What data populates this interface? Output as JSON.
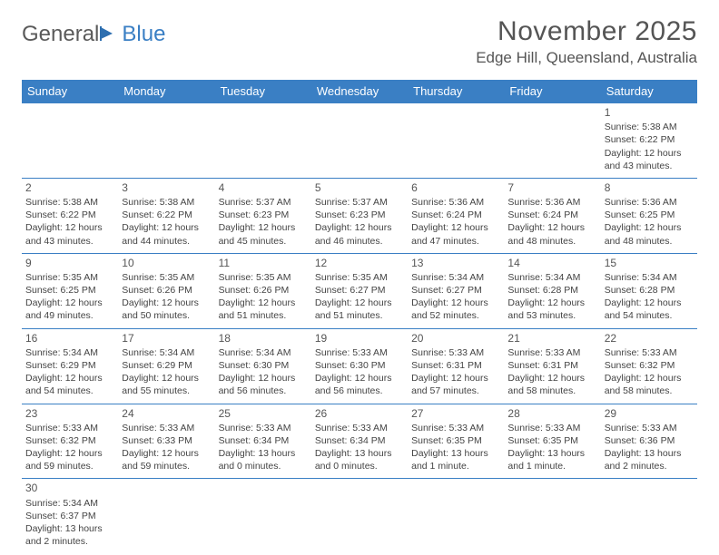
{
  "logo": {
    "text1": "General",
    "text2": "Blue"
  },
  "title": "November 2025",
  "location": "Edge Hill, Queensland, Australia",
  "colors": {
    "header_bg": "#3a7fc4",
    "header_text": "#ffffff",
    "border": "#3a7fc4",
    "text": "#444444",
    "title_text": "#555555"
  },
  "day_headers": [
    "Sunday",
    "Monday",
    "Tuesday",
    "Wednesday",
    "Thursday",
    "Friday",
    "Saturday"
  ],
  "weeks": [
    [
      null,
      null,
      null,
      null,
      null,
      null,
      {
        "n": "1",
        "sr": "5:38 AM",
        "ss": "6:22 PM",
        "dl": "12 hours and 43 minutes."
      }
    ],
    [
      {
        "n": "2",
        "sr": "5:38 AM",
        "ss": "6:22 PM",
        "dl": "12 hours and 43 minutes."
      },
      {
        "n": "3",
        "sr": "5:38 AM",
        "ss": "6:22 PM",
        "dl": "12 hours and 44 minutes."
      },
      {
        "n": "4",
        "sr": "5:37 AM",
        "ss": "6:23 PM",
        "dl": "12 hours and 45 minutes."
      },
      {
        "n": "5",
        "sr": "5:37 AM",
        "ss": "6:23 PM",
        "dl": "12 hours and 46 minutes."
      },
      {
        "n": "6",
        "sr": "5:36 AM",
        "ss": "6:24 PM",
        "dl": "12 hours and 47 minutes."
      },
      {
        "n": "7",
        "sr": "5:36 AM",
        "ss": "6:24 PM",
        "dl": "12 hours and 48 minutes."
      },
      {
        "n": "8",
        "sr": "5:36 AM",
        "ss": "6:25 PM",
        "dl": "12 hours and 48 minutes."
      }
    ],
    [
      {
        "n": "9",
        "sr": "5:35 AM",
        "ss": "6:25 PM",
        "dl": "12 hours and 49 minutes."
      },
      {
        "n": "10",
        "sr": "5:35 AM",
        "ss": "6:26 PM",
        "dl": "12 hours and 50 minutes."
      },
      {
        "n": "11",
        "sr": "5:35 AM",
        "ss": "6:26 PM",
        "dl": "12 hours and 51 minutes."
      },
      {
        "n": "12",
        "sr": "5:35 AM",
        "ss": "6:27 PM",
        "dl": "12 hours and 51 minutes."
      },
      {
        "n": "13",
        "sr": "5:34 AM",
        "ss": "6:27 PM",
        "dl": "12 hours and 52 minutes."
      },
      {
        "n": "14",
        "sr": "5:34 AM",
        "ss": "6:28 PM",
        "dl": "12 hours and 53 minutes."
      },
      {
        "n": "15",
        "sr": "5:34 AM",
        "ss": "6:28 PM",
        "dl": "12 hours and 54 minutes."
      }
    ],
    [
      {
        "n": "16",
        "sr": "5:34 AM",
        "ss": "6:29 PM",
        "dl": "12 hours and 54 minutes."
      },
      {
        "n": "17",
        "sr": "5:34 AM",
        "ss": "6:29 PM",
        "dl": "12 hours and 55 minutes."
      },
      {
        "n": "18",
        "sr": "5:34 AM",
        "ss": "6:30 PM",
        "dl": "12 hours and 56 minutes."
      },
      {
        "n": "19",
        "sr": "5:33 AM",
        "ss": "6:30 PM",
        "dl": "12 hours and 56 minutes."
      },
      {
        "n": "20",
        "sr": "5:33 AM",
        "ss": "6:31 PM",
        "dl": "12 hours and 57 minutes."
      },
      {
        "n": "21",
        "sr": "5:33 AM",
        "ss": "6:31 PM",
        "dl": "12 hours and 58 minutes."
      },
      {
        "n": "22",
        "sr": "5:33 AM",
        "ss": "6:32 PM",
        "dl": "12 hours and 58 minutes."
      }
    ],
    [
      {
        "n": "23",
        "sr": "5:33 AM",
        "ss": "6:32 PM",
        "dl": "12 hours and 59 minutes."
      },
      {
        "n": "24",
        "sr": "5:33 AM",
        "ss": "6:33 PM",
        "dl": "12 hours and 59 minutes."
      },
      {
        "n": "25",
        "sr": "5:33 AM",
        "ss": "6:34 PM",
        "dl": "13 hours and 0 minutes."
      },
      {
        "n": "26",
        "sr": "5:33 AM",
        "ss": "6:34 PM",
        "dl": "13 hours and 0 minutes."
      },
      {
        "n": "27",
        "sr": "5:33 AM",
        "ss": "6:35 PM",
        "dl": "13 hours and 1 minute."
      },
      {
        "n": "28",
        "sr": "5:33 AM",
        "ss": "6:35 PM",
        "dl": "13 hours and 1 minute."
      },
      {
        "n": "29",
        "sr": "5:33 AM",
        "ss": "6:36 PM",
        "dl": "13 hours and 2 minutes."
      }
    ],
    [
      {
        "n": "30",
        "sr": "5:34 AM",
        "ss": "6:37 PM",
        "dl": "13 hours and 2 minutes."
      },
      null,
      null,
      null,
      null,
      null,
      null
    ]
  ],
  "labels": {
    "sunrise": "Sunrise: ",
    "sunset": "Sunset: ",
    "daylight": "Daylight: "
  }
}
